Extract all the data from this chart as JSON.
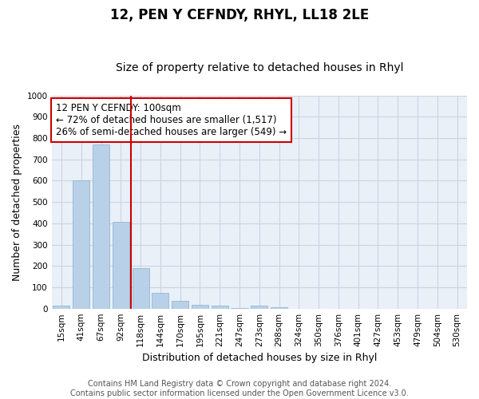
{
  "title": "12, PEN Y CEFNDY, RHYL, LL18 2LE",
  "subtitle": "Size of property relative to detached houses in Rhyl",
  "xlabel": "Distribution of detached houses by size in Rhyl",
  "ylabel": "Number of detached properties",
  "categories": [
    "15sqm",
    "41sqm",
    "67sqm",
    "92sqm",
    "118sqm",
    "144sqm",
    "170sqm",
    "195sqm",
    "221sqm",
    "247sqm",
    "273sqm",
    "298sqm",
    "324sqm",
    "350sqm",
    "376sqm",
    "401sqm",
    "427sqm",
    "453sqm",
    "479sqm",
    "504sqm",
    "530sqm"
  ],
  "values": [
    13,
    600,
    770,
    405,
    188,
    75,
    35,
    16,
    13,
    3,
    12,
    5,
    0,
    0,
    0,
    0,
    0,
    0,
    0,
    0,
    0
  ],
  "bar_color": "#b8d0e8",
  "bar_edge_color": "#8ab0cc",
  "vline_x": 3.5,
  "vline_color": "#cc0000",
  "ylim": [
    0,
    1000
  ],
  "yticks": [
    0,
    100,
    200,
    300,
    400,
    500,
    600,
    700,
    800,
    900,
    1000
  ],
  "annotation_title": "12 PEN Y CEFNDY: 100sqm",
  "annotation_line1": "← 72% of detached houses are smaller (1,517)",
  "annotation_line2": "26% of semi-detached houses are larger (549) →",
  "annotation_box_color": "#cc0000",
  "footer_line1": "Contains HM Land Registry data © Crown copyright and database right 2024.",
  "footer_line2": "Contains public sector information licensed under the Open Government Licence v3.0.",
  "background_color": "#ffffff",
  "plot_bg_color": "#eaf0f8",
  "grid_color": "#c8d4e4",
  "title_fontsize": 12,
  "subtitle_fontsize": 10,
  "axis_label_fontsize": 9,
  "tick_fontsize": 7.5,
  "annotation_fontsize": 8.5,
  "footer_fontsize": 7
}
